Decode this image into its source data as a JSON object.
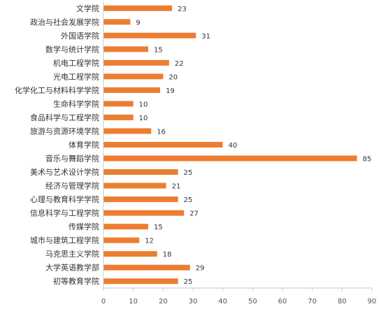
{
  "chart_data": {
    "type": "bar",
    "orientation": "horizontal",
    "title": "",
    "xlabel": "",
    "ylabel": "",
    "xlim": [
      0,
      90
    ],
    "x_ticks": [
      0,
      10,
      20,
      30,
      40,
      50,
      60,
      70,
      80,
      90
    ],
    "grid": false,
    "legend": "none",
    "bar_color": "#ED7D31",
    "categories": [
      "文学院",
      "政治与社会发展学院",
      "外国语学院",
      "数学与统计学院",
      "机电工程学院",
      "光电工程学院",
      "化学化工与材料科学学院",
      "生命科学学院",
      "食品科学与工程学院",
      "旅游与资源环境学院",
      "体育学院",
      "音乐与舞蹈学院",
      "美术与艺术设计学院",
      "经济与管理学院",
      "心理与教育科学学院",
      "信息科学与工程学院",
      "传媒学院",
      "城市与建筑工程学院",
      "马克思主义学院",
      "大学英语教学部",
      "初等教育学院"
    ],
    "values": [
      23,
      9,
      31,
      15,
      22,
      20,
      19,
      10,
      10,
      16,
      40,
      85,
      25,
      21,
      25,
      27,
      15,
      12,
      18,
      29,
      25
    ]
  }
}
